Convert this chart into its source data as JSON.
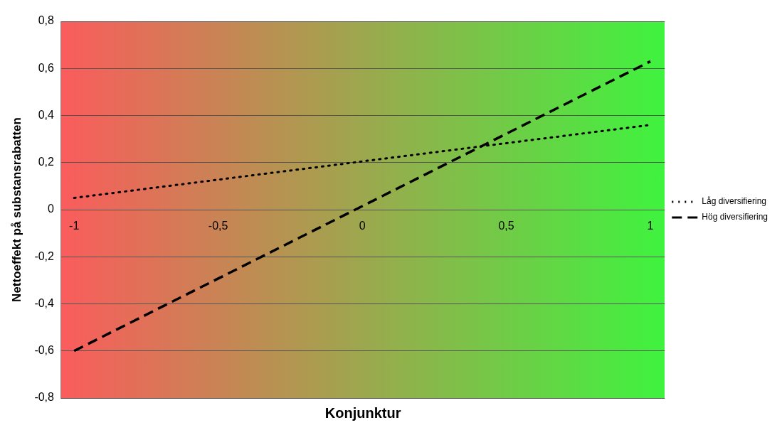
{
  "chart_data": {
    "type": "line",
    "xlabel": "Konjunktur",
    "ylabel": "Nettoeffekt på substansrabatten",
    "x": [
      -1,
      1
    ],
    "series": [
      {
        "name": "Låg diversifiering",
        "color": "#000000",
        "values": [
          0.05,
          0.36
        ],
        "line_style": "dotted"
      },
      {
        "name": "Hög diversifiering",
        "color": "#000000",
        "values": [
          -0.6,
          0.63
        ],
        "line_style": "dashed"
      }
    ],
    "xlim": [
      -1.045,
      1.05
    ],
    "xticks": [
      -1,
      {
        "value": -0.5,
        "label": "-0,5"
      },
      0,
      {
        "value": 0.5,
        "label": "0,5"
      },
      1
    ],
    "ylim": [
      -0.8,
      0.8
    ],
    "yticks": [
      {
        "value": -0.8,
        "label": "-0,8"
      },
      {
        "value": -0.6,
        "label": "-0,6"
      },
      {
        "value": -0.4,
        "label": "-0,4"
      },
      {
        "value": -0.2,
        "label": "-0,2"
      },
      0,
      {
        "value": 0.2,
        "label": "0,2"
      },
      {
        "value": 0.4,
        "label": "0,4"
      },
      {
        "value": 0.6,
        "label": "0,6"
      },
      {
        "value": 0.8,
        "label": "0,8"
      }
    ],
    "grid": "y",
    "legend": "right",
    "marker": "none"
  }
}
